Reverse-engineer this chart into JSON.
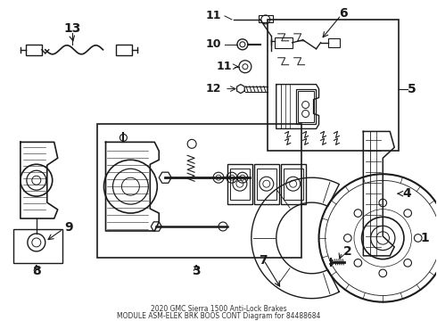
{
  "bg_color": "#ffffff",
  "line_color": "#1a1a1a",
  "title_line1": "2020 GMC Sierra 1500 Anti-Lock Brakes",
  "title_line2": "MODULE ASM-ELEK BRK BOOS CONT Diagram for 84488684",
  "figsize": [
    4.9,
    3.6
  ],
  "dpi": 100,
  "xlim": [
    0,
    490
  ],
  "ylim": [
    0,
    360
  ]
}
